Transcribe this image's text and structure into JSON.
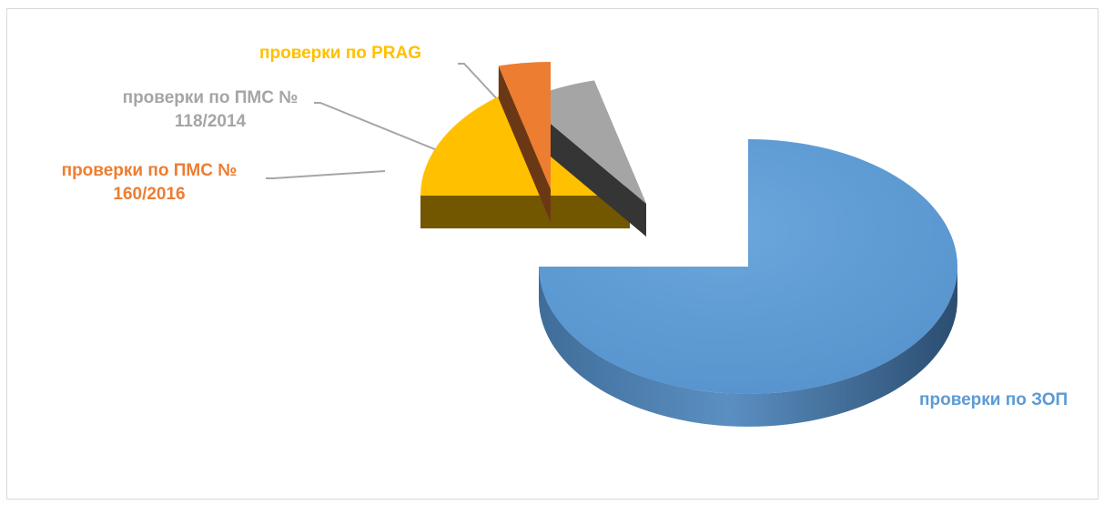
{
  "chart_data": {
    "type": "pie",
    "style": "3d-exploded",
    "title": "",
    "slices": [
      {
        "label": "проверки по ЗОП",
        "label_lines": [
          "проверки по ЗОП"
        ],
        "value": 75,
        "color": "#5b9bd5"
      },
      {
        "label": "проверки по PRAG",
        "label_lines": [
          "проверки по PRAG"
        ],
        "value": 15,
        "color": "#ffc000"
      },
      {
        "label": "проверки по ПМС № 118/2014",
        "label_lines": [
          "проверки по ПМС №",
          "118/2014"
        ],
        "value": 6,
        "color": "#a5a5a5"
      },
      {
        "label": "проверки по ПМС № 160/2016",
        "label_lines": [
          "проверки по ПМС №",
          "160/2016"
        ],
        "value": 4,
        "color": "#ed7d31"
      }
    ],
    "legend": "none"
  }
}
